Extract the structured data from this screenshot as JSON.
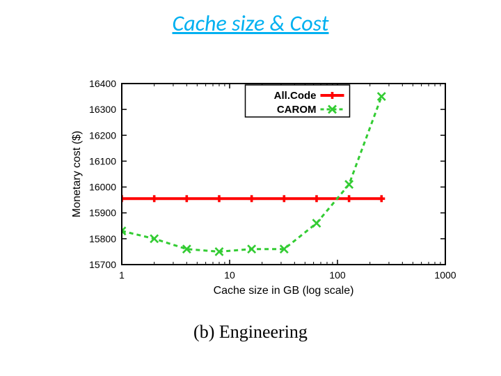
{
  "title": {
    "text": "Cache size & Cost",
    "color": "#00b0f0",
    "fontsize": 32
  },
  "subcaption": {
    "text": "(b)  Engineering",
    "fontsize": 26,
    "color": "#000000"
  },
  "chart": {
    "type": "line",
    "background_color": "#ffffff",
    "plot_border_color": "#000000",
    "plot_border_width": 2,
    "xlabel": "Cache size in GB (log scale)",
    "ylabel": "Monetary cost ($)",
    "label_fontsize": 16,
    "tick_fontsize": 14,
    "xscale": "log",
    "xlim": [
      1,
      1000
    ],
    "ylim": [
      15700,
      16400
    ],
    "xtick_values": [
      1,
      10,
      100,
      1000
    ],
    "xtick_labels": [
      "1",
      "10",
      "100",
      "1000"
    ],
    "ytick_values": [
      15700,
      15800,
      15900,
      16000,
      16100,
      16200,
      16300,
      16400
    ],
    "ytick_labels": [
      "15700",
      "15800",
      "15900",
      "16000",
      "16100",
      "16200",
      "16300",
      "16400"
    ],
    "minor_ticks_x": true,
    "legend": {
      "position": "top-inside",
      "border_color": "#000000",
      "items": [
        "All.Code",
        "CAROM"
      ]
    },
    "series": [
      {
        "name": "All.Code",
        "color": "#ff0000",
        "line_width": 4,
        "line_style": "solid",
        "marker": "plus",
        "marker_size": 10,
        "x": [
          1,
          2,
          4,
          8,
          16,
          32,
          64,
          128,
          256
        ],
        "y": [
          15955,
          15955,
          15955,
          15955,
          15955,
          15955,
          15955,
          15955,
          15955
        ]
      },
      {
        "name": "CAROM",
        "color": "#33cc33",
        "line_width": 3,
        "line_style": "dashed",
        "marker": "x",
        "marker_size": 11,
        "x": [
          1,
          2,
          4,
          8,
          16,
          32,
          64,
          128,
          256
        ],
        "y": [
          15830,
          15800,
          15760,
          15750,
          15760,
          15760,
          15860,
          16010,
          16350
        ]
      }
    ]
  }
}
